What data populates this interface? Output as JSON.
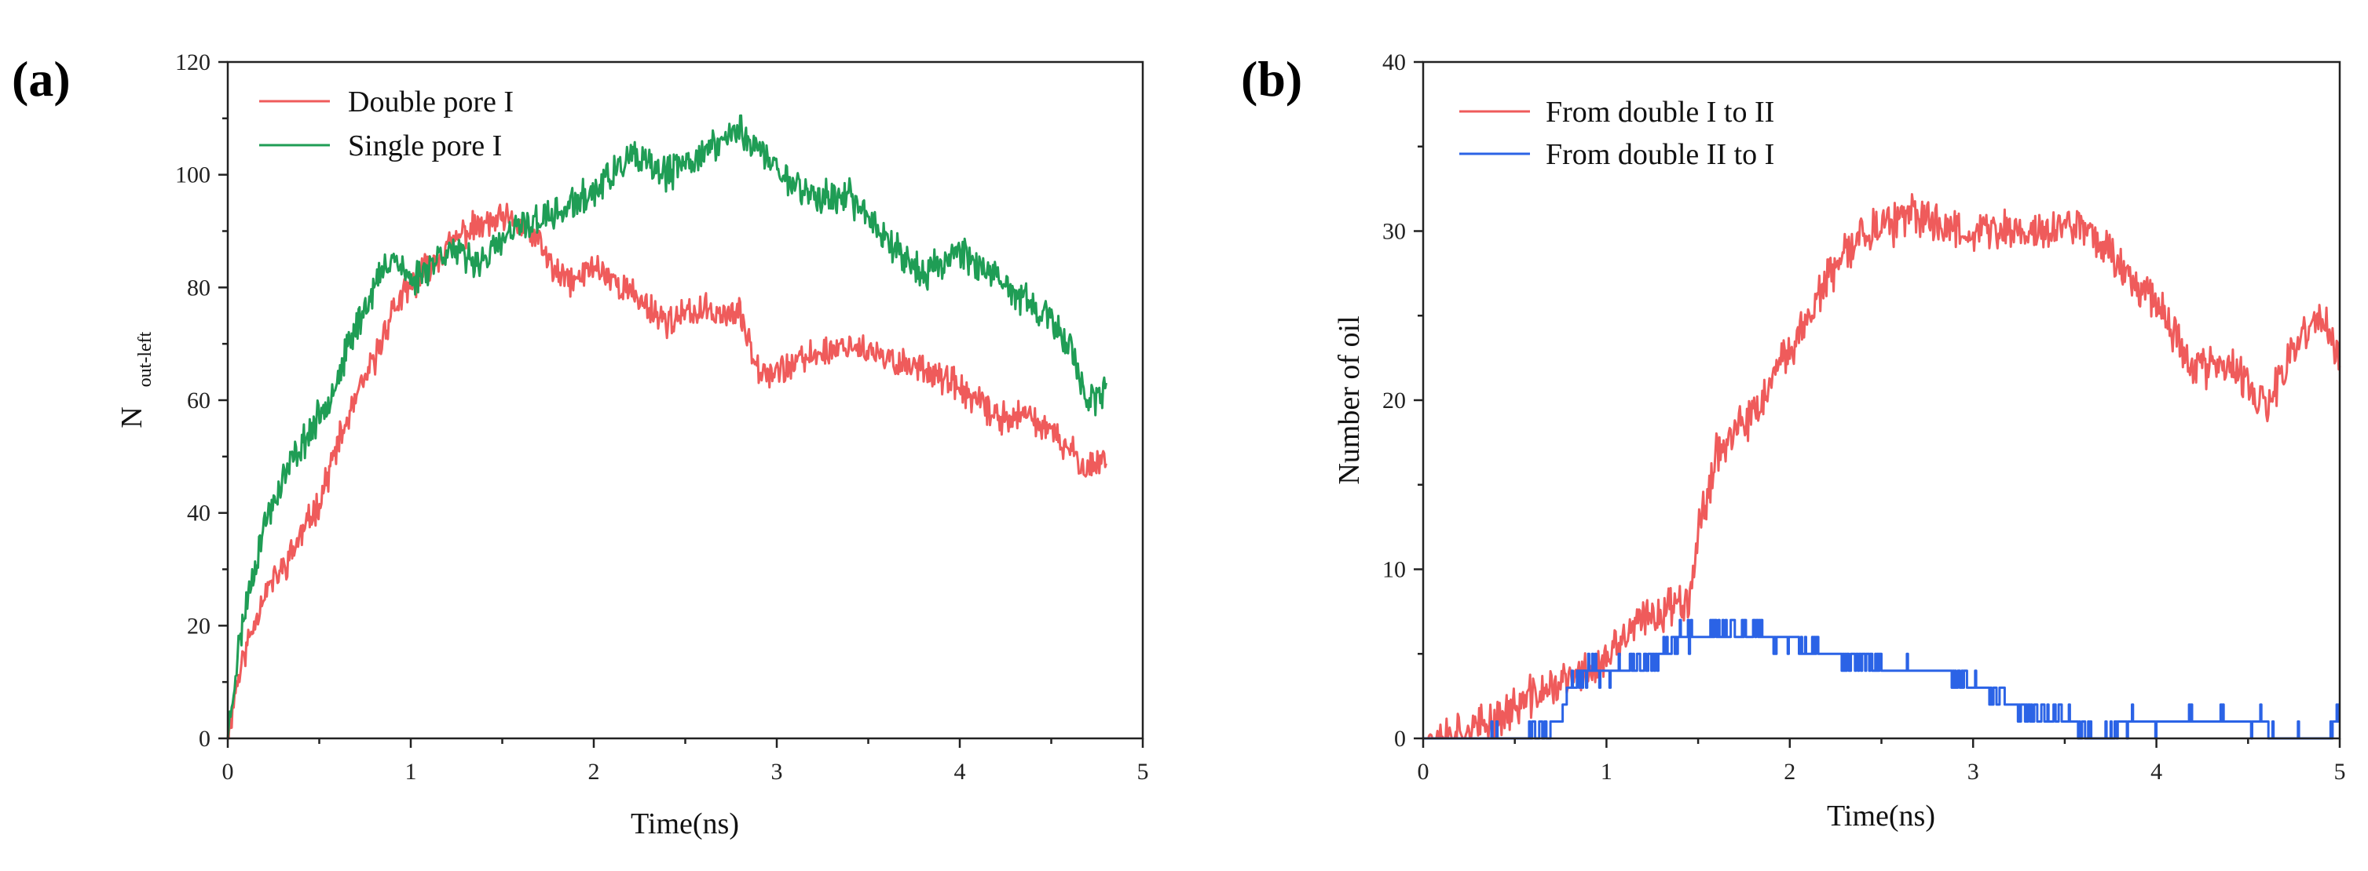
{
  "chart_data": [
    {
      "panel_label": "(a)",
      "type": "line",
      "xlabel": "Time(ns)",
      "ylabel_main": "N",
      "ylabel_sub": "out-left",
      "xlim": [
        0,
        5
      ],
      "ylim": [
        0,
        120
      ],
      "xticks": [
        0,
        1,
        2,
        3,
        4,
        5
      ],
      "yticks": [
        0,
        20,
        40,
        60,
        80,
        100,
        120
      ],
      "legend": "top-left",
      "series": [
        {
          "name": "Double pore I",
          "color": "#ef5b5b",
          "noise": 2.2,
          "seed": 11,
          "x": [
            0,
            0.05,
            0.1,
            0.2,
            0.3,
            0.4,
            0.5,
            0.6,
            0.7,
            0.8,
            0.9,
            1.0,
            1.1,
            1.2,
            1.3,
            1.4,
            1.5,
            1.6,
            1.7,
            1.8,
            1.9,
            2.0,
            2.2,
            2.4,
            2.6,
            2.8,
            2.9,
            3.0,
            3.2,
            3.4,
            3.6,
            3.8,
            4.0,
            4.2,
            4.4,
            4.6,
            4.7,
            4.8
          ],
          "y": [
            0,
            10,
            16,
            26,
            30,
            36,
            42,
            52,
            60,
            67,
            76,
            80,
            84,
            87,
            90,
            91,
            92,
            91,
            88,
            82,
            81,
            84,
            79,
            74,
            76,
            75,
            66,
            65,
            68,
            70,
            67,
            66,
            62,
            57,
            57,
            51,
            48,
            50
          ]
        },
        {
          "name": "Single pore I",
          "color": "#1f9d55",
          "noise": 2.4,
          "seed": 23,
          "x": [
            0,
            0.05,
            0.1,
            0.2,
            0.3,
            0.4,
            0.5,
            0.6,
            0.7,
            0.8,
            0.9,
            1.0,
            1.1,
            1.2,
            1.3,
            1.4,
            1.5,
            1.6,
            1.7,
            1.8,
            2.0,
            2.2,
            2.4,
            2.6,
            2.8,
            3.0,
            3.2,
            3.4,
            3.6,
            3.8,
            4.0,
            4.2,
            4.4,
            4.6,
            4.7,
            4.8
          ],
          "y": [
            0,
            14,
            24,
            38,
            46,
            52,
            57,
            64,
            73,
            80,
            86,
            81,
            84,
            87,
            85,
            85,
            88,
            91,
            92,
            93,
            97,
            103,
            100,
            104,
            108,
            101,
            96,
            96,
            89,
            82,
            87,
            81,
            77,
            70,
            60,
            61
          ]
        }
      ]
    },
    {
      "panel_label": "(b)",
      "type": "line",
      "xlabel": "Time(ns)",
      "ylabel": "Number of oil",
      "xlim": [
        0,
        5
      ],
      "ylim": [
        0,
        40
      ],
      "xticks": [
        0,
        1,
        2,
        3,
        4,
        5
      ],
      "yticks": [
        0,
        10,
        20,
        30,
        40
      ],
      "legend": "top-left",
      "series": [
        {
          "name": "From double I to II",
          "color": "#ef5b5b",
          "noise": 1.0,
          "seed": 37,
          "x": [
            0,
            0.3,
            0.6,
            0.8,
            1.0,
            1.1,
            1.2,
            1.3,
            1.45,
            1.5,
            1.6,
            1.8,
            2.0,
            2.2,
            2.4,
            2.6,
            2.7,
            2.8,
            3.0,
            3.2,
            3.4,
            3.6,
            3.8,
            4.0,
            4.2,
            4.4,
            4.6,
            4.8,
            4.9,
            5.0
          ],
          "y": [
            0,
            0.5,
            2.5,
            3.5,
            4.5,
            6,
            7,
            7.5,
            8.5,
            12,
            17,
            19,
            23,
            27,
            30,
            30.5,
            31,
            30.5,
            30,
            30,
            30,
            30.5,
            28,
            26,
            22,
            22,
            19.5,
            24,
            25,
            22
          ]
        },
        {
          "name": "From double II to I",
          "color": "#2b63e6",
          "noise": 0.5,
          "seed": 53,
          "stepped": true,
          "x": [
            0,
            0.5,
            0.52,
            0.75,
            0.8,
            0.9,
            1.1,
            1.3,
            1.4,
            1.5,
            1.8,
            1.9,
            2.0,
            2.2,
            2.4,
            2.6,
            2.8,
            3.0,
            3.2,
            3.4,
            3.55,
            3.65,
            3.75,
            3.8,
            4.0,
            4.6,
            4.65,
            4.95,
            5.0
          ],
          "y": [
            0,
            0,
            0,
            1,
            3,
            4,
            4,
            5,
            6,
            6,
            6.5,
            6,
            5.5,
            5,
            4.5,
            4,
            4,
            3.5,
            2,
            1.5,
            1,
            0,
            0,
            1,
            1,
            1,
            0,
            0,
            2
          ]
        }
      ]
    }
  ]
}
